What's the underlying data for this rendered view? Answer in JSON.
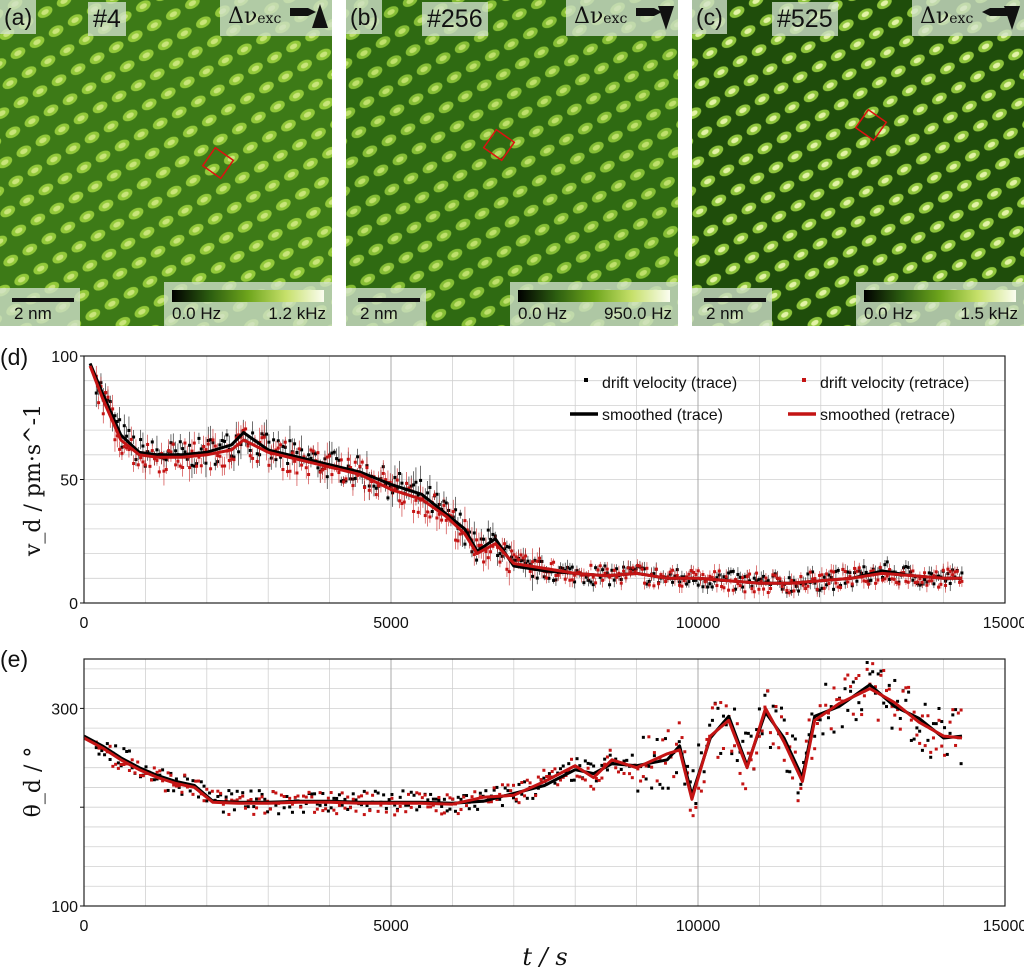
{
  "panels": [
    {
      "letter": "(a)",
      "frame": "#4",
      "quantity": "Δν",
      "quantity_sub": "exc",
      "scale": "2 nm",
      "cmin": "0.0 Hz",
      "cmax": "1.2 kHz"
    },
    {
      "letter": "(b)",
      "frame": "#256",
      "quantity": "Δν",
      "quantity_sub": "exc",
      "scale": "2 nm",
      "cmin": "0.0 Hz",
      "cmax": "950.0 Hz"
    },
    {
      "letter": "(c)",
      "frame": "#525",
      "quantity": "Δν",
      "quantity_sub": "exc",
      "scale": "2 nm",
      "cmin": "0.0 Hz",
      "cmax": "1.5 kHz"
    }
  ],
  "chart_data": [
    {
      "type": "scatter",
      "panel": "(d)",
      "ylabel": "v_d / pm·s^-1",
      "xlabel": "",
      "xlim": [
        0,
        15000
      ],
      "ylim": [
        0,
        100
      ],
      "xticks": [
        "0",
        "5000",
        "10000",
        "15000"
      ],
      "yticks": [
        "0",
        "50",
        "100"
      ],
      "legend": [
        "drift velocity (trace)",
        "drift velocity (retrace)",
        "smoothed (trace)",
        "smoothed (retrace)"
      ],
      "series": [
        {
          "name": "smoothed (trace)",
          "color": "#000000",
          "x": [
            100,
            300,
            600,
            900,
            1200,
            1600,
            2000,
            2400,
            2600,
            3000,
            3500,
            4000,
            4500,
            5000,
            5500,
            5900,
            6200,
            6400,
            6700,
            7000,
            7500,
            8000,
            8500,
            9000,
            9500,
            10000,
            10500,
            11000,
            11500,
            12000,
            12500,
            13000,
            13500,
            14000,
            14300
          ],
          "y": [
            97,
            85,
            68,
            61,
            60,
            60,
            61,
            64,
            69,
            62,
            59,
            56,
            53,
            48,
            44,
            36,
            30,
            21,
            26,
            15,
            13,
            12,
            11,
            12,
            10,
            10,
            9,
            8,
            8,
            9,
            10,
            13,
            11,
            10,
            10
          ]
        },
        {
          "name": "smoothed (retrace)",
          "color": "#c41414",
          "x": [
            100,
            300,
            600,
            900,
            1200,
            1600,
            2000,
            2400,
            2600,
            3000,
            3500,
            4000,
            4500,
            5000,
            5500,
            5900,
            6200,
            6400,
            6700,
            7000,
            7500,
            8000,
            8500,
            9000,
            9500,
            10000,
            10500,
            11000,
            11500,
            12000,
            12500,
            13000,
            13500,
            14000,
            14300
          ],
          "y": [
            96,
            83,
            66,
            60,
            59,
            59,
            60,
            62,
            66,
            61,
            58,
            55,
            52,
            46,
            42,
            35,
            28,
            20,
            24,
            16,
            14,
            12,
            11,
            12,
            10,
            10,
            9,
            8,
            8,
            9,
            10,
            12,
            11,
            10,
            10
          ]
        }
      ]
    },
    {
      "type": "scatter",
      "panel": "(e)",
      "ylabel": "θ_d / °",
      "xlabel": "t / s",
      "xlim": [
        0,
        15000
      ],
      "ylim": [
        100,
        350
      ],
      "xticks": [
        "0",
        "5000",
        "10000",
        "15000"
      ],
      "yticks": [
        "100",
        "300"
      ],
      "series": [
        {
          "name": "smoothed (trace)",
          "color": "#000000",
          "x": [
            0,
            300,
            600,
            900,
            1200,
            1500,
            1800,
            2100,
            2500,
            3000,
            3500,
            4000,
            4500,
            5000,
            5500,
            6000,
            6500,
            7000,
            7500,
            8000,
            8300,
            8600,
            9000,
            9500,
            9700,
            9900,
            10200,
            10500,
            10800,
            11100,
            11400,
            11700,
            11900,
            12300,
            12800,
            13200,
            13600,
            14000,
            14300
          ],
          "y": [
            272,
            262,
            250,
            240,
            232,
            226,
            222,
            206,
            205,
            205,
            206,
            206,
            205,
            205,
            205,
            204,
            206,
            214,
            222,
            238,
            234,
            244,
            242,
            248,
            262,
            212,
            270,
            292,
            242,
            296,
            270,
            230,
            292,
            302,
            324,
            302,
            290,
            270,
            272
          ]
        },
        {
          "name": "smoothed (retrace)",
          "color": "#c41414",
          "x": [
            0,
            300,
            600,
            900,
            1200,
            1500,
            1800,
            2100,
            2500,
            3000,
            3500,
            4000,
            4500,
            5000,
            5500,
            6000,
            6500,
            7000,
            7500,
            8000,
            8300,
            8600,
            9000,
            9500,
            9700,
            9900,
            10200,
            10500,
            10800,
            11100,
            11400,
            11700,
            11900,
            12300,
            12800,
            13200,
            13600,
            14000,
            14300
          ],
          "y": [
            270,
            260,
            248,
            238,
            230,
            224,
            220,
            205,
            204,
            204,
            205,
            205,
            204,
            204,
            204,
            203,
            210,
            212,
            226,
            242,
            230,
            248,
            240,
            254,
            258,
            208,
            272,
            288,
            240,
            300,
            266,
            226,
            288,
            305,
            320,
            306,
            286,
            272,
            270
          ]
        }
      ]
    }
  ]
}
